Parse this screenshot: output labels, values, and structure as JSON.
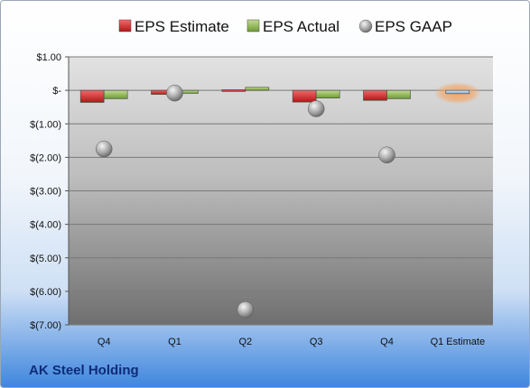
{
  "company": "AK Steel Holding",
  "chart_data": {
    "type": "bar",
    "categories": [
      "Q4",
      "Q1",
      "Q2",
      "Q3",
      "Q4",
      "Q1 Estimate"
    ],
    "series": [
      {
        "name": "EPS Estimate",
        "values": [
          -0.36,
          -0.12,
          0.02,
          -0.35,
          -0.3,
          null
        ],
        "color": "#d42a2a"
      },
      {
        "name": "EPS Actual",
        "values": [
          -0.25,
          -0.09,
          0.09,
          -0.23,
          -0.25,
          -0.1
        ],
        "color": "#8fb84a"
      },
      {
        "name": "EPS GAAP",
        "values": [
          -1.75,
          -0.08,
          -6.55,
          -0.55,
          -1.93,
          null
        ],
        "color": "#a6a6a6",
        "marker": "sphere"
      }
    ],
    "estimate_color": "#9dc3e6",
    "estimate_glow": "#f5a25d",
    "yticks": [
      1,
      0,
      -1,
      -2,
      -3,
      -4,
      -5,
      -6,
      -7
    ],
    "ytick_labels": [
      "$1.00",
      "$-",
      "$(1.00)",
      "$(2.00)",
      "$(3.00)",
      "$(4.00)",
      "$(5.00)",
      "$(6.00)",
      "$(7.00)"
    ],
    "ylim": [
      -7,
      1
    ],
    "grid": true,
    "legend_position": "top"
  }
}
